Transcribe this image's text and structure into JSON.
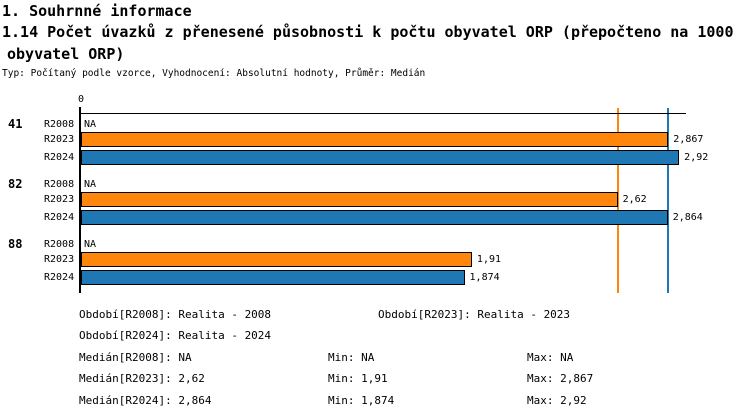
{
  "header": {
    "title": "1. Souhrnné informace",
    "subtitle_line1": "1.14 Počet úvazků z přenesené působnosti k počtu obyvatel ORP (přepočteno na 1000",
    "subtitle_line2": "obyvatel ORP)",
    "meta": "Typ: Počítaný podle vzorce, Vyhodnocení: Absolutní hodnoty, Průměr: Medián"
  },
  "chart_data": {
    "type": "bar",
    "orientation": "horizontal",
    "axis": {
      "tick_label": "0",
      "origin_value": 0
    },
    "xlim": [
      0,
      2.95
    ],
    "grid": false,
    "series_colors": {
      "R2008": null,
      "R2023": "#FF860D",
      "R2024": "#1F77B4"
    },
    "groups": [
      {
        "label": "41",
        "bars": [
          {
            "series": "R2008",
            "value": null,
            "value_label": "NA"
          },
          {
            "series": "R2023",
            "value": 2.867,
            "value_label": "2,867"
          },
          {
            "series": "R2024",
            "value": 2.92,
            "value_label": "2,92"
          }
        ]
      },
      {
        "label": "82",
        "bars": [
          {
            "series": "R2008",
            "value": null,
            "value_label": "NA"
          },
          {
            "series": "R2023",
            "value": 2.62,
            "value_label": "2,62"
          },
          {
            "series": "R2024",
            "value": 2.864,
            "value_label": "2,864"
          }
        ]
      },
      {
        "label": "88",
        "bars": [
          {
            "series": "R2008",
            "value": null,
            "value_label": "NA"
          },
          {
            "series": "R2023",
            "value": 1.91,
            "value_label": "1,91"
          },
          {
            "series": "R2024",
            "value": 1.874,
            "value_label": "1,874"
          }
        ]
      }
    ],
    "median_lines": [
      {
        "series": "R2023",
        "value": 2.62,
        "color": "#FF860D"
      },
      {
        "series": "R2024",
        "value": 2.864,
        "color": "#1F77B4"
      }
    ]
  },
  "footer": {
    "obdobi_r2008": "Období[R2008]: Realita - 2008",
    "obdobi_r2023": "Období[R2023]: Realita - 2023",
    "obdobi_r2024": "Období[R2024]: Realita - 2024",
    "median_r2008": "Medián[R2008]: NA",
    "min_r2008": "Min: NA",
    "max_r2008": "Max: NA",
    "median_r2023": "Medián[R2023]: 2,62",
    "min_r2023": "Min: 1,91",
    "max_r2023": "Max: 2,867",
    "median_r2024": "Medián[R2024]: 2,864",
    "min_r2024": "Min: 1,874",
    "max_r2024": "Max: 2,92"
  }
}
